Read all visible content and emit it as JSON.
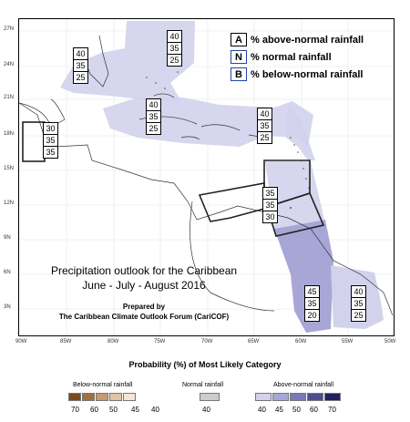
{
  "map": {
    "title_line1": "Precipitation outlook for the Caribbean",
    "title_line2": "June - July - August 2016",
    "prepared_by": "Prepared by",
    "forum": "The Caribbean Climate Outlook Forum (CariCOF)",
    "lat_labels": [
      "27N",
      "24N",
      "21N",
      "18N",
      "15N",
      "12N",
      "9N",
      "6N",
      "3N"
    ],
    "lon_labels": [
      "90W",
      "85W",
      "80W",
      "75W",
      "70W",
      "65W",
      "60W",
      "55W",
      "50W"
    ]
  },
  "key": {
    "a_letter": "A",
    "a_text": "% above-normal rainfall",
    "n_letter": "N",
    "n_text": "% normal rainfall",
    "b_letter": "B",
    "b_text": "% below-normal rainfall"
  },
  "regions": [
    {
      "name": "bahamas",
      "probs": [
        "40",
        "35",
        "25"
      ]
    },
    {
      "name": "nw-atlantic",
      "probs": [
        "40",
        "35",
        "25"
      ]
    },
    {
      "name": "greater-antilles",
      "probs": [
        "40",
        "35",
        "25"
      ]
    },
    {
      "name": "leeward",
      "probs": [
        "40",
        "35",
        "25"
      ]
    },
    {
      "name": "belize",
      "probs": [
        "30",
        "35",
        "35"
      ]
    },
    {
      "name": "windward",
      "probs": [
        "35",
        "35",
        "30"
      ]
    },
    {
      "name": "guyana",
      "probs": [
        "45",
        "35",
        "20"
      ]
    },
    {
      "name": "french-guiana",
      "probs": [
        "40",
        "35",
        "25"
      ]
    }
  ],
  "legend": {
    "title": "Probability (%) of Most Likely Category",
    "below_label": "Below-normal rainfall",
    "normal_label": "Normal rainfall",
    "above_label": "Above-normal rainfall",
    "below_values": [
      "70",
      "60",
      "50",
      "45",
      "40"
    ],
    "normal_values": [
      "40"
    ],
    "above_values": [
      "40",
      "45",
      "50",
      "60",
      "70"
    ],
    "below_colors": [
      "#7a4a1e",
      "#a0703f",
      "#c59a6c",
      "#e0c4a0",
      "#f3e6d2"
    ],
    "normal_colors": [
      "#cccccc"
    ],
    "above_colors": [
      "#d2d2ec",
      "#a8a6d6",
      "#7c78b8",
      "#4f4a92",
      "#23205e"
    ]
  }
}
